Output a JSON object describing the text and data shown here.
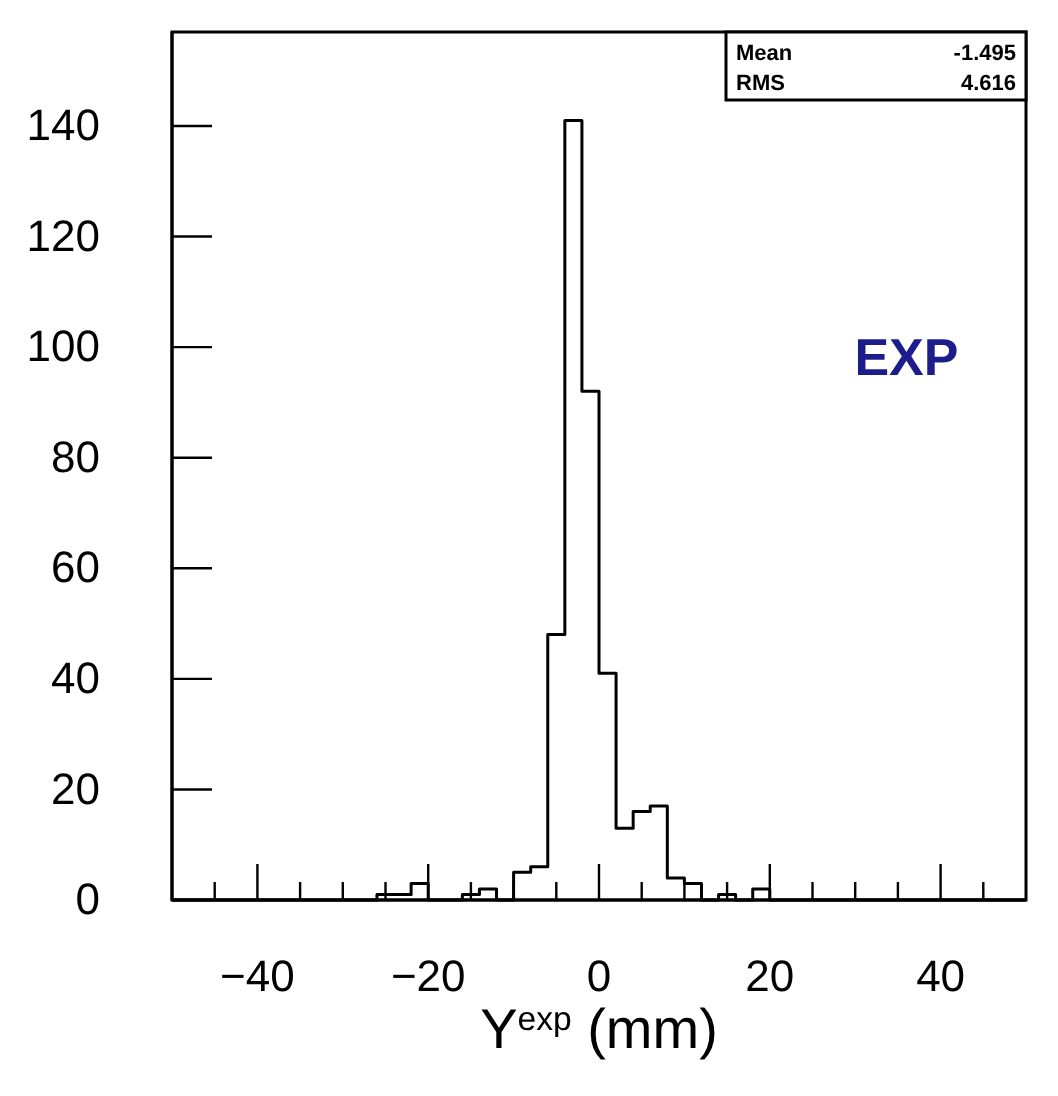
{
  "chart_data": {
    "type": "histogram",
    "xlabel": "Y$^{exp}$ (mm)",
    "color": "#000000",
    "bins": [
      -50,
      -48,
      -46,
      -44,
      -42,
      -40,
      -38,
      -36,
      -34,
      -32,
      -30,
      -28,
      -26,
      -24,
      -22,
      -20,
      -18,
      -16,
      -14,
      -12,
      -10,
      -8,
      -6,
      -4,
      -2,
      0,
      2,
      4,
      6,
      8,
      10,
      12,
      14,
      16,
      18,
      20,
      22,
      24,
      26,
      28,
      30,
      32,
      34,
      36,
      38,
      40,
      42,
      44,
      46,
      48,
      50
    ],
    "values": [
      0,
      0,
      0,
      0,
      0,
      0,
      0,
      0,
      0,
      0,
      0,
      0,
      1,
      1,
      3,
      0,
      0,
      1,
      2,
      0,
      5,
      6,
      48,
      141,
      92,
      41,
      13,
      16,
      17,
      4,
      3,
      0,
      1,
      0,
      2,
      0,
      0,
      0,
      0,
      0,
      0,
      0,
      0,
      0,
      0,
      0,
      0,
      0,
      0,
      0
    ],
    "xlim": [
      -50,
      50
    ],
    "xticks": [
      {
        "value": -45,
        "label": null
      },
      -40,
      {
        "value": -35,
        "label": null
      },
      {
        "value": -30,
        "label": null
      },
      {
        "value": -25,
        "label": null
      },
      -20,
      {
        "value": -15,
        "label": null
      },
      {
        "value": -10,
        "label": null
      },
      {
        "value": -5,
        "label": null
      },
      0,
      {
        "value": 5,
        "label": null
      },
      {
        "value": 10,
        "label": null
      },
      {
        "value": 15,
        "label": null
      },
      20,
      {
        "value": 25,
        "label": null
      },
      {
        "value": 30,
        "label": null
      },
      {
        "value": 35,
        "label": null
      },
      40,
      {
        "value": 45,
        "label": null
      }
    ],
    "ylim": [
      0,
      157
    ],
    "yticks": [
      0,
      20,
      40,
      60,
      80,
      100,
      120,
      140
    ],
    "annotations": [
      "EXP",
      "Mean",
      "-1.495",
      "RMS",
      "4.616"
    ]
  }
}
